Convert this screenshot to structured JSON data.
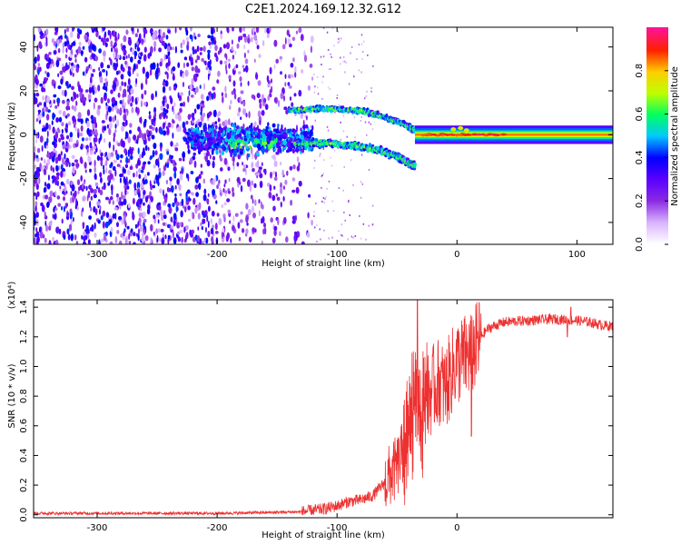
{
  "title": "C2E1.2024.169.12.32.G12",
  "chart_data": [
    {
      "type": "heatmap",
      "xlabel": "Height of straight line (km)",
      "ylabel": "Frequency (Hz)",
      "xlim": [
        -353,
        130
      ],
      "ylim": [
        -50,
        49
      ],
      "xticks": [
        -300,
        -200,
        -100,
        0,
        100
      ],
      "yticks": [
        -40,
        -20,
        0,
        20,
        40
      ],
      "colorbar": {
        "label": "Normalized spectral amplitude",
        "range": [
          0.0,
          1.0
        ],
        "ticks": [
          "0.0",
          "0.2",
          "0.4",
          "0.6",
          "0.8"
        ],
        "colormap": [
          "#ffffff",
          "#d9b3ff",
          "#8a2be2",
          "#5a00ff",
          "#0000ff",
          "#00c8ff",
          "#00ff60",
          "#bfff00",
          "#ffcc00",
          "#ff2000",
          "#ff1493"
        ]
      },
      "features": [
        {
          "name": "broadband noise",
          "x_range": [
            -353,
            -120
          ],
          "y_range": [
            -50,
            49
          ],
          "amplitude": 0.35
        },
        {
          "name": "upper branch",
          "x": [
            -140,
            -110,
            -80,
            -60,
            -45,
            -35
          ],
          "y": [
            11,
            12,
            11,
            8,
            5,
            2
          ],
          "amplitude": 0.6
        },
        {
          "name": "lower branch",
          "x": [
            -135,
            -110,
            -85,
            -65,
            -50,
            -40,
            -35
          ],
          "y": [
            -4,
            -4,
            -5,
            -7,
            -10,
            -13,
            -14
          ],
          "amplitude": 0.6
        },
        {
          "name": "carrier line",
          "x": [
            -35,
            0,
            130
          ],
          "y": [
            0,
            0,
            0
          ],
          "amplitude": 0.9
        }
      ]
    },
    {
      "type": "line",
      "xlabel": "Height of straight line (km)",
      "ylabel": "SNR (10 * v/v)",
      "yunit": "(x10⁴)",
      "xlim": [
        -353,
        130
      ],
      "ylim": [
        -0.02,
        1.45
      ],
      "xticks": [
        -300,
        -200,
        -100,
        0
      ],
      "yticks": [
        "0.0",
        "0.2",
        "0.4",
        "0.6",
        "0.8",
        "1.0",
        "1.2",
        "1.4"
      ],
      "series_color": "#ee3030",
      "x": [
        -353,
        -300,
        -250,
        -200,
        -160,
        -130,
        -110,
        -100,
        -90,
        -80,
        -70,
        -60,
        -50,
        -45,
        -40,
        -35,
        -30,
        -25,
        -20,
        -15,
        -10,
        -5,
        0,
        5,
        10,
        15,
        20,
        25,
        30,
        40,
        60,
        80,
        100,
        110,
        120,
        130
      ],
      "y": [
        0.01,
        0.01,
        0.01,
        0.01,
        0.015,
        0.02,
        0.04,
        0.06,
        0.09,
        0.1,
        0.13,
        0.22,
        0.32,
        0.42,
        0.55,
        0.75,
        0.62,
        0.78,
        0.85,
        0.9,
        0.85,
        0.95,
        1.03,
        1.05,
        1.08,
        1.12,
        1.2,
        1.25,
        1.27,
        1.3,
        1.31,
        1.32,
        1.31,
        1.3,
        1.28,
        1.27
      ]
    }
  ]
}
